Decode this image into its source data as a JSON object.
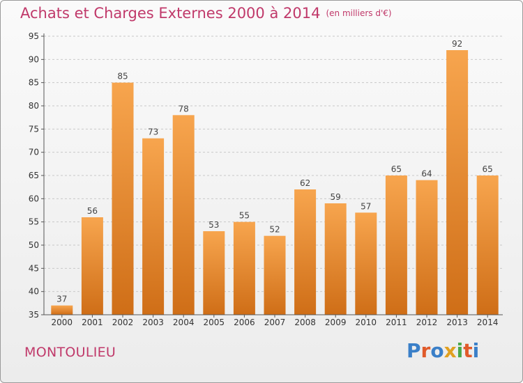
{
  "header": {
    "title": "Achats et Charges Externes 2000 à 2014",
    "unit": "(en milliers d'€)"
  },
  "footer": {
    "commune": "MONTOULIEU",
    "logo_text": "Proxiti",
    "logo_colors": [
      "#3a7fc8",
      "#e05a2a",
      "#3a7fc8",
      "#e0a020",
      "#4aa84a",
      "#e05a2a",
      "#3a7fc8"
    ]
  },
  "colors": {
    "title": "#c0396a",
    "bar_top": "#f7a54e",
    "bar_bottom": "#cf6e17",
    "grid": "#c8c8c8",
    "axis": "#555555"
  },
  "chart_data": {
    "type": "bar",
    "categories": [
      "2000",
      "2001",
      "2002",
      "2003",
      "2004",
      "2005",
      "2006",
      "2007",
      "2008",
      "2009",
      "2010",
      "2011",
      "2012",
      "2013",
      "2014"
    ],
    "values": [
      37,
      56,
      85,
      73,
      78,
      53,
      55,
      52,
      62,
      59,
      57,
      65,
      64,
      92,
      65
    ],
    "ylim": [
      35,
      95
    ],
    "yticks": [
      35,
      40,
      45,
      50,
      55,
      60,
      65,
      70,
      75,
      80,
      85,
      90,
      95
    ],
    "grid": true,
    "data_labels": true
  }
}
